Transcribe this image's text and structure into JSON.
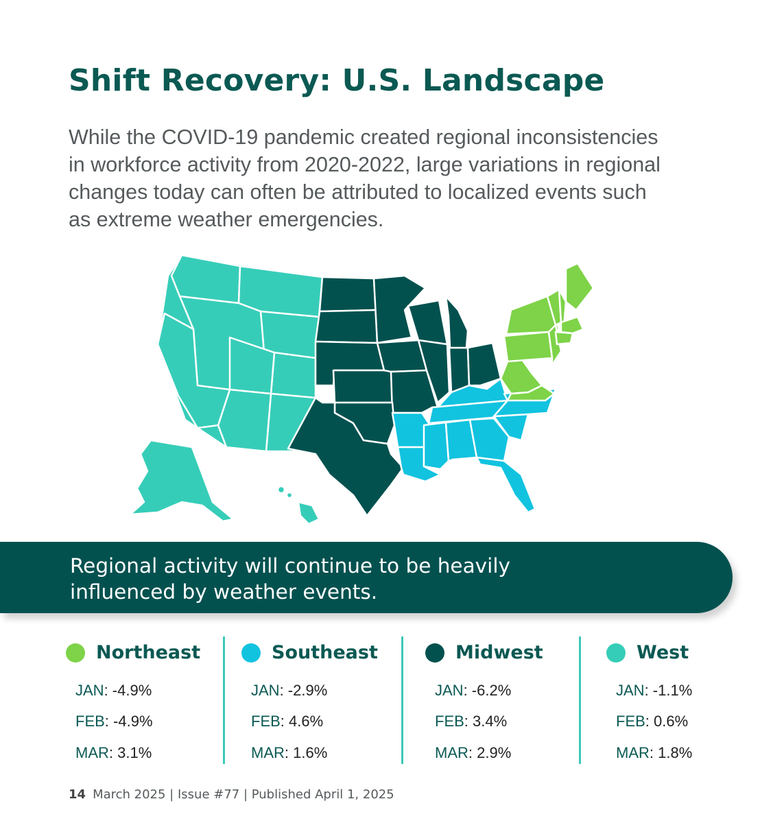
{
  "title": "Shift Recovery: U.S. Landscape",
  "intro": {
    "line1": "While the COVID-19 pandemic created regional inconsistencies",
    "line2": "in workforce activity from 2020-2022, large variations in regional",
    "line3": "changes today can often be attributed to localized events such",
    "line4": "as extreme weather emergencies."
  },
  "banner": {
    "line1": "Regional activity will continue to be heavily",
    "line2": "influenced by weather events."
  },
  "colors": {
    "northeast": "#7ed348",
    "southeast": "#12c3df",
    "midwest": "#03514f",
    "west": "#36cdb8",
    "title": "#0b5953",
    "divider": "#3cc8b8"
  },
  "regions": [
    {
      "name": "Northeast",
      "stats": [
        {
          "month": "JAN",
          "value": "-4.9%"
        },
        {
          "month": "FEB",
          "value": "-4.9%"
        },
        {
          "month": "MAR",
          "value": "3.1%"
        }
      ]
    },
    {
      "name": "Southeast",
      "stats": [
        {
          "month": "JAN",
          "value": "-2.9%"
        },
        {
          "month": "FEB",
          "value": "4.6%"
        },
        {
          "month": "MAR",
          "value": "1.6%"
        }
      ]
    },
    {
      "name": "Midwest",
      "stats": [
        {
          "month": "JAN",
          "value": "-6.2%"
        },
        {
          "month": "FEB",
          "value": "3.4%"
        },
        {
          "month": "MAR",
          "value": "2.9%"
        }
      ]
    },
    {
      "name": "West",
      "stats": [
        {
          "month": "JAN",
          "value": "-1.1%"
        },
        {
          "month": "FEB",
          "value": "0.6%"
        },
        {
          "month": "MAR",
          "value": "1.8%"
        }
      ]
    }
  ],
  "footer": {
    "page": "14",
    "text": "March 2025 | Issue #77 | Published April 1, 2025"
  }
}
